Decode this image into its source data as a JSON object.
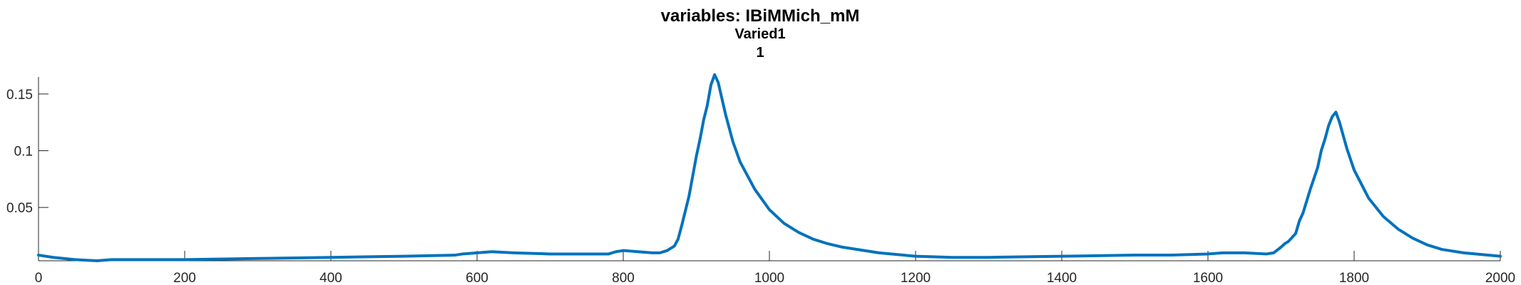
{
  "chart_data": {
    "type": "line",
    "title": [
      "variables: IBiMMich_mM",
      "Varied1",
      "1"
    ],
    "xlabel": "",
    "ylabel": "",
    "xlim": [
      0,
      2000
    ],
    "ylim": [
      0.003,
      0.165
    ],
    "xticks": [
      "0",
      "200",
      "400",
      "600",
      "800",
      "1000",
      "1200",
      "1400",
      "1600",
      "1800",
      "2000"
    ],
    "yticks": [
      {
        "value": 0.05,
        "label": "0.05"
      },
      {
        "value": 0.1,
        "label": "0.1"
      },
      {
        "value": 0.15,
        "label": "0.15"
      }
    ],
    "grid": false,
    "legend": "none",
    "color": "#0072BD",
    "series": [
      {
        "x": [
          0,
          20,
          50,
          80,
          100,
          150,
          200,
          300,
          400,
          500,
          570,
          580,
          600,
          620,
          650,
          700,
          760,
          780,
          790,
          800,
          820,
          840,
          850,
          860,
          870,
          875,
          880,
          890,
          900,
          905,
          910,
          915,
          920,
          925,
          930,
          940,
          950,
          960,
          980,
          1000,
          1020,
          1040,
          1060,
          1080,
          1100,
          1150,
          1200,
          1250,
          1300,
          1400,
          1500,
          1550,
          1600,
          1620,
          1630,
          1650,
          1680,
          1690,
          1700,
          1705,
          1710,
          1720,
          1725,
          1730,
          1740,
          1750,
          1755,
          1760,
          1765,
          1770,
          1775,
          1780,
          1790,
          1800,
          1820,
          1840,
          1860,
          1880,
          1900,
          1920,
          1950,
          2000
        ],
        "y": [
          0.008,
          0.006,
          0.004,
          0.003,
          0.004,
          0.004,
          0.004,
          0.005,
          0.006,
          0.007,
          0.008,
          0.009,
          0.01,
          0.011,
          0.01,
          0.009,
          0.009,
          0.009,
          0.011,
          0.012,
          0.011,
          0.01,
          0.01,
          0.012,
          0.016,
          0.022,
          0.034,
          0.06,
          0.095,
          0.11,
          0.127,
          0.14,
          0.158,
          0.167,
          0.16,
          0.132,
          0.108,
          0.09,
          0.066,
          0.048,
          0.036,
          0.028,
          0.022,
          0.018,
          0.015,
          0.01,
          0.007,
          0.006,
          0.006,
          0.007,
          0.008,
          0.008,
          0.009,
          0.01,
          0.01,
          0.01,
          0.009,
          0.01,
          0.015,
          0.018,
          0.02,
          0.027,
          0.038,
          0.045,
          0.066,
          0.085,
          0.1,
          0.11,
          0.122,
          0.13,
          0.134,
          0.125,
          0.102,
          0.083,
          0.058,
          0.042,
          0.031,
          0.023,
          0.017,
          0.013,
          0.01,
          0.007
        ]
      }
    ]
  }
}
